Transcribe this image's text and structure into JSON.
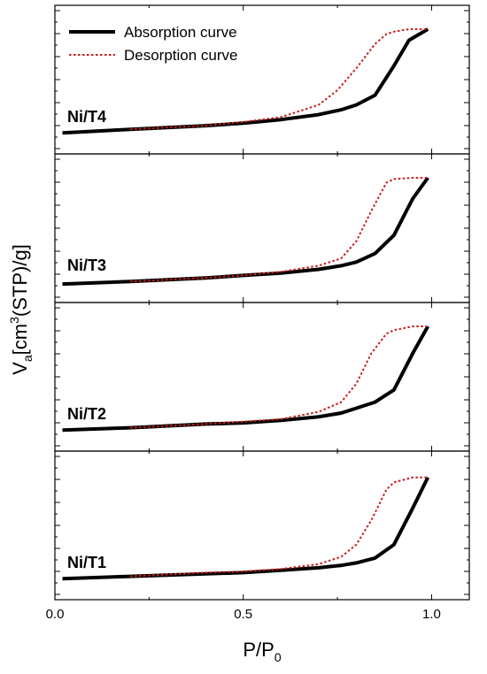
{
  "chart_data": {
    "type": "line",
    "xlabel": {
      "main": "P/P",
      "sub": "0"
    },
    "ylabel": {
      "v": "V",
      "sub": "a",
      "mid": "[cm",
      "sup": "3",
      "rest": "(STP)/g]"
    },
    "xlim": [
      0,
      1.1
    ],
    "x_ticks": [
      "0.0",
      "0.5",
      "1.0"
    ],
    "x_tick_values": [
      0,
      0.5,
      1.0
    ],
    "legend": {
      "placement": "top-left of top panel",
      "absorption": "Absorption curve",
      "desorption": "Desorption curve"
    },
    "colors": {
      "absorption": "#000000",
      "desorption": "#cc1a1a"
    },
    "y_axis_numbered": false,
    "panels": [
      {
        "name": "Ni/T4",
        "ylim": [
          0,
          1
        ],
        "series": [
          {
            "name": "Absorption curve",
            "x": [
              0.02,
              0.2,
              0.4,
              0.5,
              0.6,
              0.7,
              0.76,
              0.8,
              0.85,
              0.9,
              0.94,
              0.99
            ],
            "y": [
              0.07,
              0.1,
              0.13,
              0.15,
              0.18,
              0.22,
              0.26,
              0.3,
              0.38,
              0.62,
              0.83,
              0.92
            ]
          },
          {
            "name": "Desorption curve",
            "x": [
              0.2,
              0.4,
              0.5,
              0.6,
              0.7,
              0.75,
              0.8,
              0.85,
              0.88,
              0.9,
              0.94,
              0.99
            ],
            "y": [
              0.1,
              0.13,
              0.16,
              0.2,
              0.3,
              0.42,
              0.6,
              0.8,
              0.88,
              0.9,
              0.92,
              0.92
            ]
          }
        ]
      },
      {
        "name": "Ni/T3",
        "ylim": [
          0,
          1
        ],
        "series": [
          {
            "name": "Absorption curve",
            "x": [
              0.02,
              0.2,
              0.4,
              0.5,
              0.6,
              0.7,
              0.76,
              0.8,
              0.85,
              0.9,
              0.95,
              0.99
            ],
            "y": [
              0.05,
              0.07,
              0.1,
              0.12,
              0.14,
              0.17,
              0.2,
              0.23,
              0.3,
              0.45,
              0.75,
              0.92
            ]
          },
          {
            "name": "Desorption curve",
            "x": [
              0.2,
              0.4,
              0.5,
              0.6,
              0.7,
              0.76,
              0.8,
              0.84,
              0.88,
              0.9,
              0.95,
              0.99
            ],
            "y": [
              0.07,
              0.1,
              0.12,
              0.15,
              0.2,
              0.26,
              0.4,
              0.65,
              0.88,
              0.91,
              0.92,
              0.92
            ]
          }
        ]
      },
      {
        "name": "Ni/T2",
        "ylim": [
          0,
          1
        ],
        "series": [
          {
            "name": "Absorption curve",
            "x": [
              0.02,
              0.2,
              0.4,
              0.5,
              0.6,
              0.7,
              0.76,
              0.8,
              0.85,
              0.9,
              0.95,
              0.99
            ],
            "y": [
              0.07,
              0.09,
              0.12,
              0.13,
              0.15,
              0.18,
              0.21,
              0.25,
              0.3,
              0.4,
              0.7,
              0.92
            ]
          },
          {
            "name": "Desorption curve",
            "x": [
              0.2,
              0.4,
              0.5,
              0.6,
              0.7,
              0.76,
              0.8,
              0.84,
              0.88,
              0.9,
              0.95,
              0.99
            ],
            "y": [
              0.09,
              0.12,
              0.14,
              0.16,
              0.22,
              0.3,
              0.45,
              0.7,
              0.86,
              0.89,
              0.92,
              0.92
            ]
          }
        ]
      },
      {
        "name": "Ni/T1",
        "ylim": [
          0,
          1
        ],
        "series": [
          {
            "name": "Absorption curve",
            "x": [
              0.02,
              0.2,
              0.4,
              0.5,
              0.6,
              0.7,
              0.76,
              0.8,
              0.85,
              0.9,
              0.95,
              0.99
            ],
            "y": [
              0.07,
              0.09,
              0.11,
              0.12,
              0.14,
              0.16,
              0.18,
              0.2,
              0.24,
              0.35,
              0.65,
              0.9
            ]
          },
          {
            "name": "Desorption curve",
            "x": [
              0.2,
              0.4,
              0.5,
              0.6,
              0.7,
              0.76,
              0.8,
              0.84,
              0.88,
              0.9,
              0.95,
              0.99
            ],
            "y": [
              0.09,
              0.12,
              0.13,
              0.15,
              0.19,
              0.25,
              0.35,
              0.55,
              0.8,
              0.86,
              0.9,
              0.9
            ]
          }
        ]
      }
    ]
  }
}
